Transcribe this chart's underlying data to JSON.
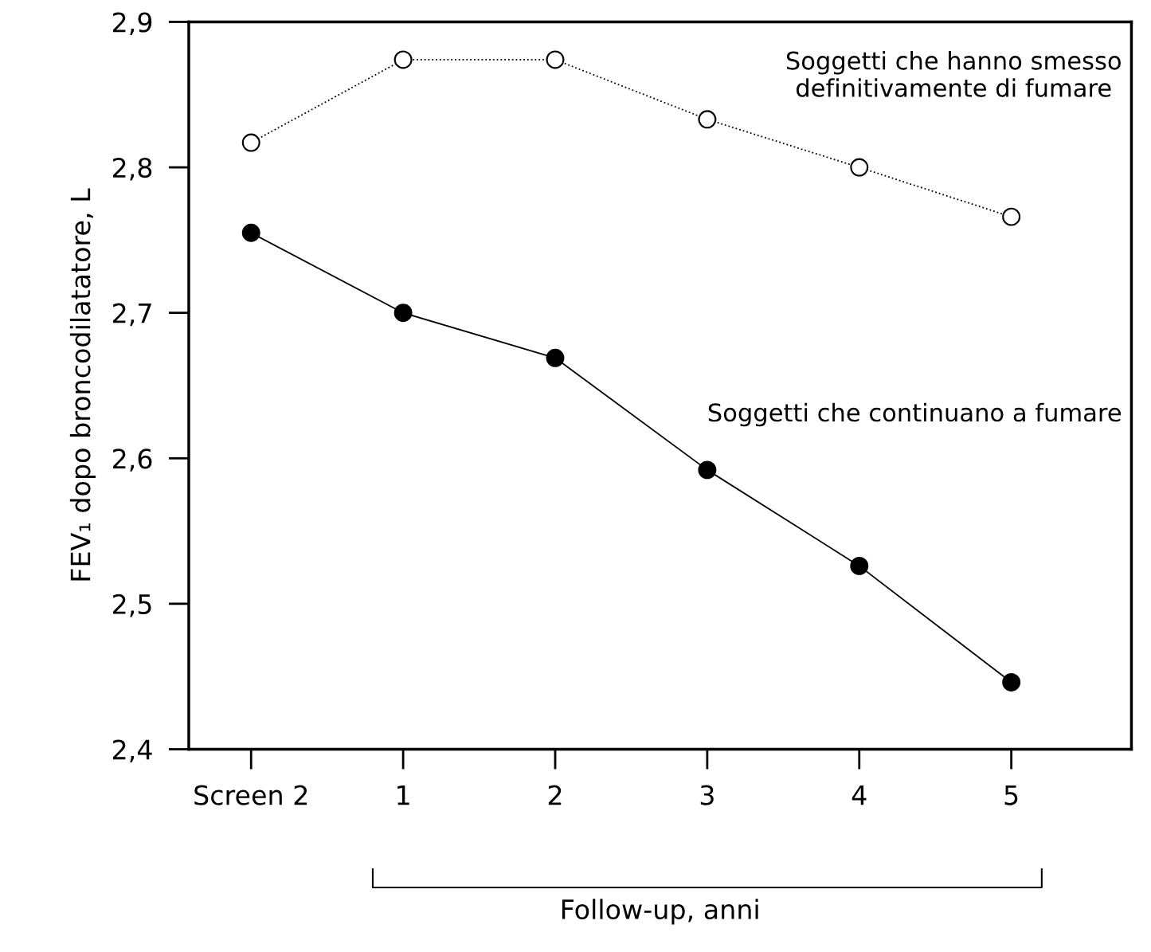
{
  "chart_data": {
    "type": "line",
    "xlabel": "Follow-up, anni",
    "ylabel": "FEV₁ dopo broncodilatatore, L",
    "categories": [
      "Screen 2",
      "1",
      "2",
      "3",
      "4",
      "5"
    ],
    "series": [
      {
        "name": "Soggetti che hanno smesso\ndefinitivamente di fumare",
        "color": "#000000",
        "values": [
          2.817,
          2.874,
          2.874,
          2.833,
          2.8,
          2.766
        ],
        "line_style": "dotted"
      },
      {
        "name": "Soggetti che continuano a fumare",
        "color": "#000000",
        "values": [
          2.755,
          2.7,
          2.669,
          2.592,
          2.526,
          2.446
        ],
        "line_style": "solid"
      }
    ],
    "ylim": [
      2.4,
      2.9
    ],
    "yticks": [
      {
        "value": 2.4,
        "label": "2,4"
      },
      {
        "value": 2.5,
        "label": "2,5"
      },
      {
        "value": 2.6,
        "label": "2,6"
      },
      {
        "value": 2.7,
        "label": "2,7"
      },
      {
        "value": 2.8,
        "label": "2,8"
      },
      {
        "value": 2.9,
        "label": "2,9"
      }
    ],
    "marker": "circle",
    "grid": false,
    "legend": false
  }
}
